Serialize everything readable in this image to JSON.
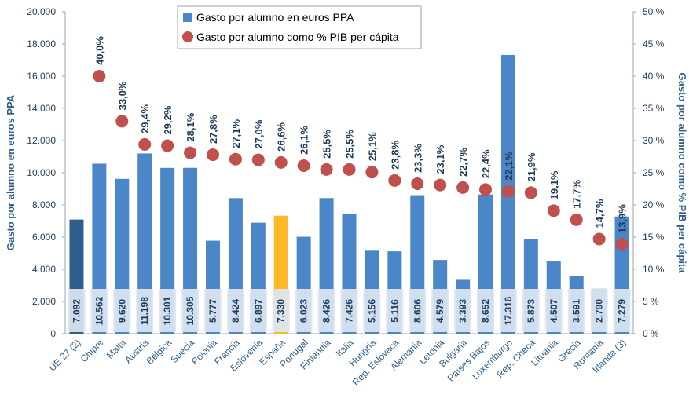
{
  "chart_data": {
    "type": "bar_dot",
    "categories": [
      "UE 27 (2)",
      "Chipre",
      "Malta",
      "Austria",
      "Bélgica",
      "Suecia",
      "Polonia",
      "Francia",
      "Eslovenia",
      "España",
      "Portugal",
      "Finlandia",
      "Italia",
      "Hungría",
      "Rep. Eslovaca",
      "Alemania",
      "Letonia",
      "Bulgaria",
      "Países Bajos",
      "Luxemburgo",
      "Rep. Checa",
      "Lituania",
      "Grecia",
      "Rumania",
      "Irlanda (3)"
    ],
    "series": [
      {
        "name": "Gasto por alumno en euros PPA",
        "type": "bar",
        "color": "#4a86c8",
        "colors": [
          "#2e5f8c",
          "#4a86c8",
          "#4a86c8",
          "#4a86c8",
          "#4a86c8",
          "#4a86c8",
          "#4a86c8",
          "#4a86c8",
          "#4a86c8",
          "#fbb829",
          "#4a86c8",
          "#4a86c8",
          "#4a86c8",
          "#4a86c8",
          "#4a86c8",
          "#4a86c8",
          "#4a86c8",
          "#4a86c8",
          "#4a86c8",
          "#4a86c8",
          "#4a86c8",
          "#4a86c8",
          "#4a86c8",
          "#4a86c8",
          "#4a86c8"
        ],
        "values": [
          7092,
          10562,
          9620,
          11198,
          10301,
          10305,
          5777,
          8424,
          6897,
          7330,
          6023,
          8426,
          7426,
          5156,
          5116,
          8606,
          4579,
          3393,
          8652,
          17316,
          5873,
          4507,
          3591,
          2790,
          7279
        ],
        "value_labels": [
          "7.092",
          "10.562",
          "9.620",
          "11.198",
          "10.301",
          "10.305",
          "5.777",
          "8.424",
          "6.897",
          "7.330",
          "6.023",
          "8.426",
          "7.426",
          "5.156",
          "5.116",
          "8.606",
          "4.579",
          "3.393",
          "8.652",
          "17.316",
          "5.873",
          "4.507",
          "3.591",
          "2.790",
          "7.279"
        ]
      },
      {
        "name": "Gasto por alumno como % PIB per cápita",
        "type": "dot",
        "axis": "y2",
        "color": "#c0504d",
        "values": [
          null,
          40.0,
          33.0,
          29.4,
          29.2,
          28.1,
          27.8,
          27.1,
          27.0,
          26.6,
          26.1,
          25.5,
          25.5,
          25.1,
          23.8,
          23.3,
          23.1,
          22.7,
          22.4,
          22.1,
          21.9,
          19.1,
          17.7,
          14.7,
          13.9
        ],
        "value_labels": [
          null,
          "40,0%",
          "33,0%",
          "29,4%",
          "29,2%",
          "28,1%",
          "27,8%",
          "27,1%",
          "27,0%",
          "26,6%",
          "26,1%",
          "25,5%",
          "25,5%",
          "25,1%",
          "23,8%",
          "23,3%",
          "23,1%",
          "22,7%",
          "22,4%",
          "22,1%",
          "21,9%",
          "19,1%",
          "17,7%",
          "14,7%",
          "13,9%"
        ]
      }
    ],
    "ylabel": "Gasto  por alumno en euros PPA",
    "y2label": "Gasto por alumno como % PIB per cápita",
    "ylim": [
      0,
      20000
    ],
    "yticks": [
      {
        "value": 0,
        "label": "0"
      },
      {
        "value": 2000,
        "label": "2.000"
      },
      {
        "value": 4000,
        "label": "4.000"
      },
      {
        "value": 6000,
        "label": "6.000"
      },
      {
        "value": 8000,
        "label": "8.000"
      },
      {
        "value": 10000,
        "label": "10.000"
      },
      {
        "value": 12000,
        "label": "12.000"
      },
      {
        "value": 14000,
        "label": "14.000"
      },
      {
        "value": 16000,
        "label": "16.000"
      },
      {
        "value": 18000,
        "label": "18.000"
      },
      {
        "value": 20000,
        "label": "20.000"
      }
    ],
    "y2lim": [
      0,
      50
    ],
    "y2ticks": [
      {
        "value": 0,
        "label": "0 %"
      },
      {
        "value": 5,
        "label": "5 %"
      },
      {
        "value": 10,
        "label": "10 %"
      },
      {
        "value": 15,
        "label": "15 %"
      },
      {
        "value": 20,
        "label": "20 %"
      },
      {
        "value": 25,
        "label": "25 %"
      },
      {
        "value": 30,
        "label": "30 %"
      },
      {
        "value": 35,
        "label": "35 %"
      },
      {
        "value": 40,
        "label": "40 %"
      },
      {
        "value": 45,
        "label": "45 %"
      },
      {
        "value": 50,
        "label": "50 %"
      }
    ],
    "legend": "top-left"
  }
}
